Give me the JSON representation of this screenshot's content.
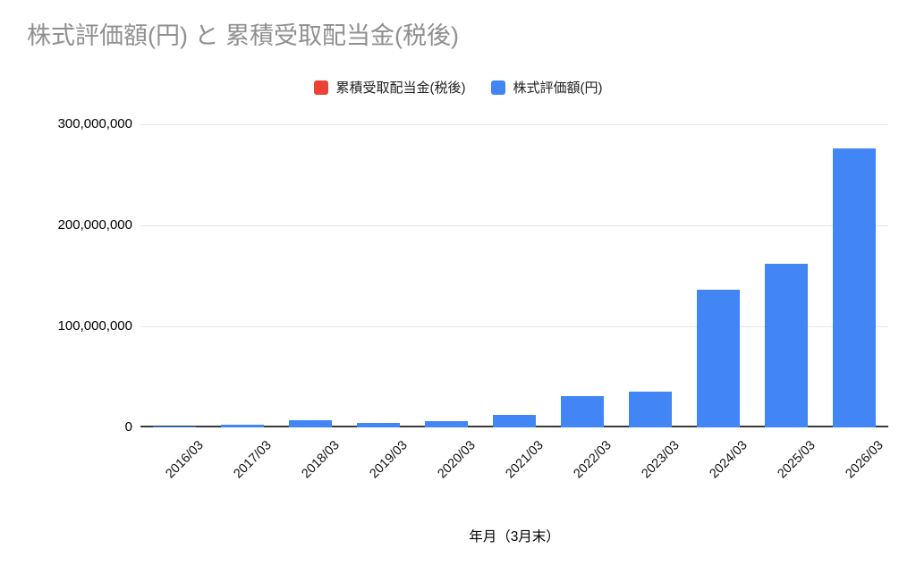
{
  "header": {
    "title": "株式評価額(円) と 累積受取配当金(税後)"
  },
  "chart_data": {
    "type": "bar",
    "title": "株式評価額(円) と 累積受取配当金(税後)",
    "xlabel": "年月（3月末）",
    "ylabel": "",
    "categories": [
      "2016/03",
      "2017/03",
      "2018/03",
      "2019/03",
      "2020/03",
      "2021/03",
      "2022/03",
      "2023/03",
      "2024/03",
      "2025/03",
      "2026/03"
    ],
    "series": [
      {
        "name": "累積受取配当金(税後)",
        "color": "#EA4335",
        "values": [
          0,
          0,
          0,
          0,
          0,
          0,
          0,
          0,
          0,
          0,
          0
        ],
        "visible_note": "bars too small to be visible at this axis scale"
      },
      {
        "name": "株式評価額(円)",
        "color": "#4285F4",
        "values": [
          1200000,
          2300000,
          6800000,
          4500000,
          6000000,
          12800000,
          31000000,
          35000000,
          136000000,
          162000000,
          276000000
        ]
      }
    ],
    "ylim": [
      0,
      300000000
    ],
    "yticks": [
      {
        "value": 0,
        "label": "0"
      },
      {
        "value": 100000000,
        "label": "100,000,000"
      },
      {
        "value": 200000000,
        "label": "200,000,000"
      },
      {
        "value": 300000000,
        "label": "300,000,000"
      }
    ],
    "grid": true,
    "legend_position": "top",
    "bar_color_hex": "#4285F4",
    "secondary_color_hex": "#EA4335",
    "title_color_hex": "#909090",
    "gridline_color_hex": "#e6e6e6",
    "axisline_color_hex": "#3a3a3a"
  }
}
